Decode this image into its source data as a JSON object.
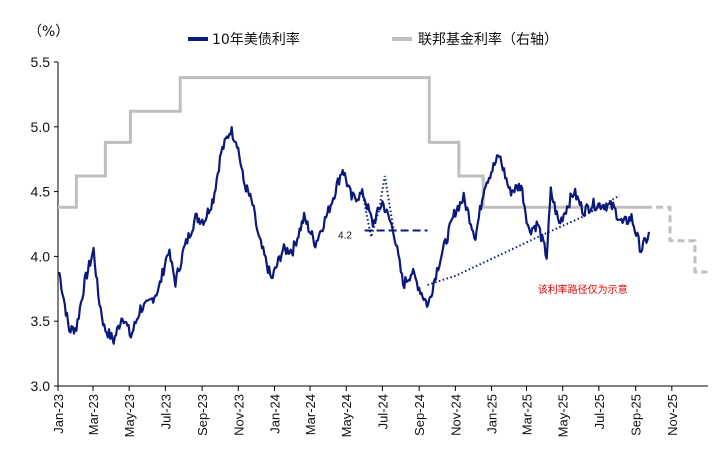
{
  "chart_data": {
    "type": "line",
    "unit_label": "（%）",
    "ylim": [
      3.0,
      5.5
    ],
    "yticks": [
      "3.0",
      "3.5",
      "4.0",
      "4.5",
      "5.0",
      "5.5"
    ],
    "x_ticks": [
      "Jan-23",
      "Mar-23",
      "May-23",
      "Jul-23",
      "Sep-23",
      "Nov-23",
      "Jan-24",
      "Mar-24",
      "May-24",
      "Jul-24",
      "Sep-24",
      "Nov-24",
      "Jan-25",
      "Mar-25",
      "May-25",
      "Jul-25",
      "Sep-25",
      "Nov-25"
    ],
    "grid": false,
    "legend_position": "top",
    "series": [
      {
        "name": "10年美债利率",
        "color": "#0b1a7a",
        "x": [
          "2023-01-03",
          "2023-01-20",
          "2023-02-01",
          "2023-02-15",
          "2023-03-02",
          "2023-03-10",
          "2023-03-20",
          "2023-04-05",
          "2023-04-20",
          "2023-05-04",
          "2023-05-20",
          "2023-06-01",
          "2023-06-20",
          "2023-07-06",
          "2023-07-18",
          "2023-08-01",
          "2023-08-21",
          "2023-09-05",
          "2023-09-20",
          "2023-10-03",
          "2023-10-19",
          "2023-10-30",
          "2023-11-10",
          "2023-11-25",
          "2023-12-05",
          "2023-12-27",
          "2024-01-15",
          "2024-02-01",
          "2024-02-20",
          "2024-03-10",
          "2024-04-01",
          "2024-04-25",
          "2024-05-10",
          "2024-05-30",
          "2024-06-15",
          "2024-07-01",
          "2024-07-20",
          "2024-08-05",
          "2024-08-20",
          "2024-09-05",
          "2024-09-16",
          "2024-10-01",
          "2024-10-15",
          "2024-11-01",
          "2024-11-15",
          "2024-12-05",
          "2024-12-20",
          "2025-01-14",
          "2025-02-01",
          "2025-02-20",
          "2025-03-05",
          "2025-03-20",
          "2025-04-04",
          "2025-04-11",
          "2025-04-25",
          "2025-05-20",
          "2025-06-05",
          "2025-06-20",
          "2025-07-10",
          "2025-07-25",
          "2025-08-10",
          "2025-08-25",
          "2025-09-10",
          "2025-09-25"
        ],
        "values": [
          3.88,
          3.43,
          3.45,
          3.8,
          4.05,
          3.7,
          3.45,
          3.35,
          3.55,
          3.38,
          3.6,
          3.62,
          3.75,
          4.05,
          3.8,
          4.05,
          4.3,
          4.28,
          4.45,
          4.8,
          4.98,
          4.88,
          4.58,
          4.4,
          4.15,
          3.82,
          4.05,
          4.05,
          4.3,
          4.1,
          4.35,
          4.68,
          4.45,
          4.48,
          4.25,
          4.42,
          4.2,
          3.78,
          3.88,
          3.72,
          3.62,
          3.9,
          4.1,
          4.35,
          4.45,
          4.15,
          4.55,
          4.78,
          4.5,
          4.55,
          4.2,
          4.25,
          4.0,
          4.5,
          4.25,
          4.5,
          4.35,
          4.4,
          4.4,
          4.38,
          4.25,
          4.3,
          4.05,
          4.18
        ]
      },
      {
        "name": "联邦基金利率（右轴）",
        "color": "#bfbfbf",
        "segments": [
          {
            "start": "2023-01-01",
            "end": "2023-02-01",
            "value": 4.38
          },
          {
            "start": "2023-02-01",
            "end": "2023-03-22",
            "value": 4.62
          },
          {
            "start": "2023-03-22",
            "end": "2023-05-03",
            "value": 4.88
          },
          {
            "start": "2023-05-03",
            "end": "2023-07-26",
            "value": 5.12
          },
          {
            "start": "2023-07-26",
            "end": "2024-09-18",
            "value": 5.38
          },
          {
            "start": "2024-09-18",
            "end": "2024-11-07",
            "value": 4.88
          },
          {
            "start": "2024-11-07",
            "end": "2024-12-18",
            "value": 4.62
          },
          {
            "start": "2024-12-18",
            "end": "2025-09-17",
            "value": 4.38
          }
        ],
        "projection": [
          {
            "start": "2025-09-17",
            "end": "2025-10-29",
            "value": 4.38
          },
          {
            "start": "2025-10-29",
            "end": "2025-12-10",
            "value": 4.12
          },
          {
            "start": "2025-12-10",
            "end": "2025-12-31",
            "value": 3.88
          }
        ]
      }
    ],
    "illustrative_paths": [
      {
        "style": "dotted",
        "x": [
          "2024-05-28",
          "2024-06-12",
          "2024-06-25",
          "2024-07-05",
          "2024-07-20"
        ],
        "values": [
          4.5,
          4.15,
          4.35,
          4.62,
          4.2
        ]
      },
      {
        "style": "dotted",
        "x": [
          "2024-09-15",
          "2024-11-01",
          "2025-01-10",
          "2025-03-20",
          "2025-06-01",
          "2025-08-05"
        ],
        "values": [
          3.78,
          3.85,
          4.0,
          4.15,
          4.3,
          4.47
        ]
      },
      {
        "style": "dashed",
        "x": [
          "2024-06-01",
          "2024-09-15"
        ],
        "values": [
          4.2,
          4.2
        ]
      }
    ],
    "annotations": [
      {
        "text": "4.2",
        "x": "2024-06-10",
        "y": 4.2
      },
      {
        "text": "该利率路径仅为示意",
        "x": "2025-05-01",
        "y": 3.75,
        "color": "#e00000"
      }
    ]
  }
}
